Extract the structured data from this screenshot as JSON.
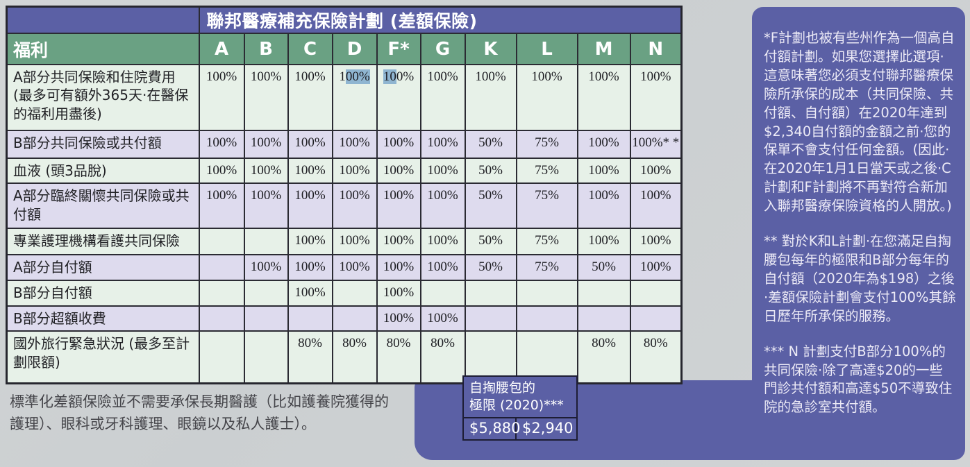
{
  "title": "聯邦醫療補充保險計劃 (差額保險)",
  "colors": {
    "panel_purple": "#5b60a5",
    "header_green": "#6aa183",
    "row_green": "#e7f1e8",
    "row_lavender": "#dedbee",
    "table_border": "#2b2b33",
    "selection_highlight": "#8fb5d1",
    "page_background": "#ced2d4",
    "panel_text": "#eceaf6"
  },
  "table": {
    "benefit_header": "福利",
    "plan_columns": [
      "A",
      "B",
      "C",
      "D",
      "F*",
      "G",
      "K",
      "L",
      "M",
      "N"
    ],
    "rows": [
      {
        "label": "A部分共同保險和住院費用 (最多可有額外365天·在醫保的福利用盡後)",
        "values": [
          "100%",
          "100%",
          "100%",
          "100%",
          "100%",
          "100%",
          "100%",
          "100%",
          "100%",
          "100%"
        ]
      },
      {
        "label": "B部分共同保險或共付額",
        "values": [
          "100%",
          "100%",
          "100%",
          "100%",
          "100%",
          "100%",
          "50%",
          "75%",
          "100%",
          "100%* *"
        ]
      },
      {
        "label": "血液 (頭3品脫)",
        "values": [
          "100%",
          "100%",
          "100%",
          "100%",
          "100%",
          "100%",
          "50%",
          "75%",
          "100%",
          "100%"
        ]
      },
      {
        "label": "A部分臨終關懷共同保險或共付額",
        "values": [
          "100%",
          "100%",
          "100%",
          "100%",
          "100%",
          "100%",
          "50%",
          "75%",
          "100%",
          "100%"
        ]
      },
      {
        "label": "專業護理機構看護共同保險",
        "values": [
          "",
          "",
          "100%",
          "100%",
          "100%",
          "100%",
          "50%",
          "75%",
          "100%",
          "100%"
        ]
      },
      {
        "label": "A部分自付額",
        "values": [
          "",
          "100%",
          "100%",
          "100%",
          "100%",
          "100%",
          "50%",
          "75%",
          "50%",
          "100%"
        ]
      },
      {
        "label": "B部分自付額",
        "values": [
          "",
          "",
          "100%",
          "",
          "100%",
          "",
          "",
          "",
          "",
          ""
        ]
      },
      {
        "label": "B部分超額收費",
        "values": [
          "",
          "",
          "",
          "",
          "100%",
          "100%",
          "",
          "",
          "",
          ""
        ]
      },
      {
        "label": "國外旅行緊急狀況 (最多至計劃限額)",
        "values": [
          "",
          "",
          "80%",
          "80%",
          "80%",
          "80%",
          "",
          "",
          "80%",
          "80%"
        ]
      }
    ],
    "highlights": [
      {
        "row": 0,
        "col": 3,
        "pre": "1",
        "hl": "00%",
        "post": ""
      },
      {
        "row": 0,
        "col": 4,
        "pre": "",
        "hl": "10",
        "post": "0%"
      }
    ]
  },
  "out_of_pocket": {
    "header_line1": "自掏腰包的",
    "header_line2": "極限 (2020)***",
    "values": [
      "$5,880",
      "$2,940"
    ]
  },
  "footnote_left": "標準化差額保險並不需要承保長期醫護（比如護養院獲得的護理）、眼科或牙科護理、眼鏡以及私人護士）。",
  "side_notes": [
    "*F計劃也被有些州作為一個高自付額計劃。如果您選擇此選項·這意味著您必須支付聯邦醫療保險所承保的成本（共同保險、共付額、自付額）在2020年達到$2,340自付額的金額之前·您的保單不會支付任何金額。(因此·在2020年1月1日當天或之後·C計劃和F計劃將不再對符合新加入聯邦醫療保險資格的人開放。)",
    "** 對於K和L計劃·在您滿足自掏腰包每年的極限和B部分每年的自付額（2020年為$198）之後·差額保險計劃會支付100%其餘日歷年所承保的服務。",
    "*** N 計劃支付B部分100%的共同保險·除了高達$20的一些門診共付額和高達$50不導致住院的急診室共付額。"
  ]
}
